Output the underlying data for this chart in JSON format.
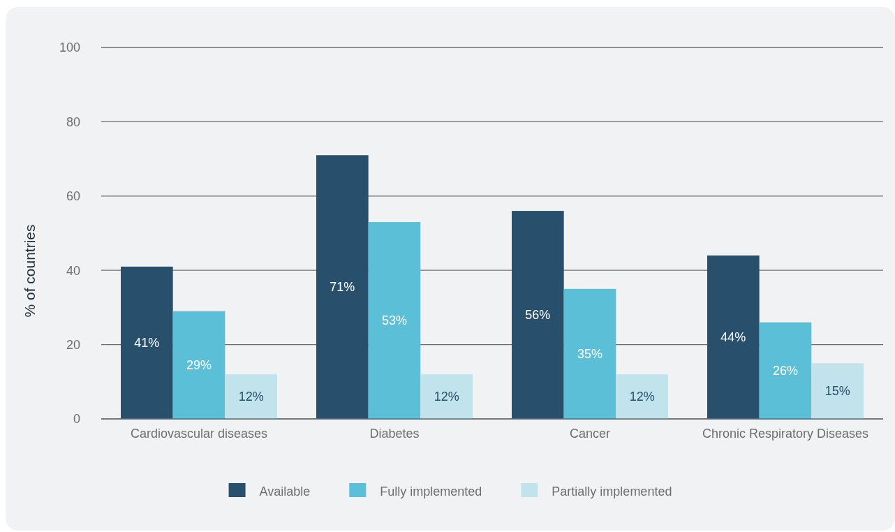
{
  "chart_data": {
    "type": "bar",
    "ylabel": "% of countries",
    "categories": [
      "Cardiovascular diseases",
      "Diabetes",
      "Cancer",
      "Chronic Respiratory Diseases"
    ],
    "series": [
      {
        "name": "Available",
        "color": "#284f6b",
        "values": [
          41,
          71,
          56,
          44
        ],
        "value_labels": [
          "41%",
          "71%",
          "56%",
          "44%"
        ]
      },
      {
        "name": "Fully implemented",
        "color": "#5bc0d7",
        "values": [
          29,
          53,
          35,
          26
        ],
        "value_labels": [
          "29%",
          "53%",
          "35%",
          "26%"
        ]
      },
      {
        "name": "Partially implemented",
        "color": "#c1e3ec",
        "values": [
          12,
          12,
          12,
          15
        ],
        "value_labels": [
          "12%",
          "12%",
          "12%",
          "15%"
        ]
      }
    ],
    "ylim": [
      0,
      100
    ],
    "yticks": [
      0,
      20,
      40,
      60,
      80,
      100
    ],
    "grid": "y",
    "legend": "bottom"
  }
}
